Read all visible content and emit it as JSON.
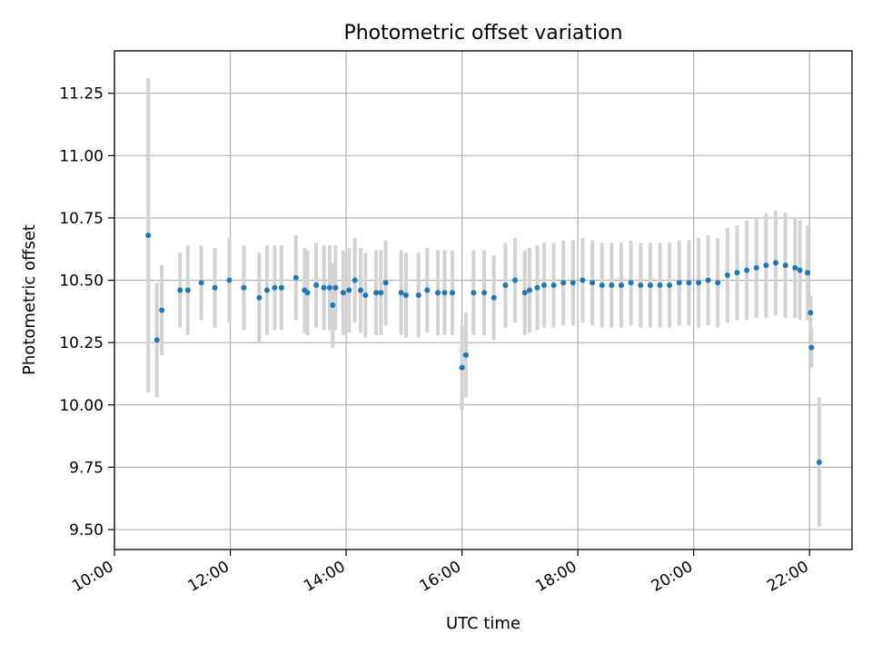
{
  "chart_data": {
    "type": "scatter",
    "title": "Photometric offset variation",
    "xlabel": "UTC time",
    "ylabel": "Photometric offset",
    "xlim": [
      "10:00",
      "22:44"
    ],
    "ylim": [
      9.42,
      11.42
    ],
    "x_ticks": [
      "10:00",
      "12:00",
      "14:00",
      "16:00",
      "18:00",
      "20:00",
      "22:00"
    ],
    "y_ticks": [
      "9.50",
      "9.75",
      "10.00",
      "10.25",
      "10.50",
      "10.75",
      "11.00",
      "11.25"
    ],
    "grid": true,
    "colors": {
      "points": "#1f77b4",
      "errorbars": "#d3d3d3",
      "grid": "#b0b0b0"
    },
    "series": [
      {
        "x": [
          "10:35",
          "10:44",
          "10:49",
          "11:08",
          "11:16",
          "11:30",
          "11:44",
          "11:59",
          "12:14",
          "12:30",
          "12:38",
          "12:46",
          "12:53",
          "13:08",
          "13:17",
          "13:20",
          "13:29",
          "13:37",
          "13:43",
          "13:46",
          "13:49",
          "13:57",
          "14:03",
          "14:09",
          "14:15",
          "14:20",
          "14:31",
          "14:36",
          "14:41",
          "14:57",
          "15:02",
          "15:15",
          "15:24",
          "15:35",
          "15:42",
          "15:50",
          "16:00",
          "16:04",
          "16:12",
          "16:23",
          "16:33",
          "16:45",
          "16:55",
          "17:05",
          "17:10",
          "17:18",
          "17:25",
          "17:35",
          "17:45",
          "17:55",
          "18:05",
          "18:15",
          "18:25",
          "18:35",
          "18:45",
          "18:55",
          "19:05",
          "19:15",
          "19:25",
          "19:35",
          "19:45",
          "19:55",
          "20:05",
          "20:15",
          "20:25",
          "20:35",
          "20:45",
          "20:55",
          "21:05",
          "21:15",
          "21:25",
          "21:35",
          "21:45",
          "21:50",
          "21:58",
          "22:01",
          "22:02",
          "22:10"
        ],
        "y": [
          10.68,
          10.26,
          10.38,
          10.46,
          10.46,
          10.49,
          10.47,
          10.5,
          10.47,
          10.43,
          10.46,
          10.47,
          10.47,
          10.51,
          10.46,
          10.45,
          10.48,
          10.47,
          10.47,
          10.4,
          10.47,
          10.45,
          10.46,
          10.5,
          10.46,
          10.44,
          10.45,
          10.45,
          10.49,
          10.45,
          10.44,
          10.44,
          10.46,
          10.45,
          10.45,
          10.45,
          10.15,
          10.2,
          10.45,
          10.45,
          10.43,
          10.48,
          10.5,
          10.45,
          10.46,
          10.47,
          10.48,
          10.48,
          10.49,
          10.49,
          10.5,
          10.49,
          10.48,
          10.48,
          10.48,
          10.49,
          10.48,
          10.48,
          10.48,
          10.48,
          10.49,
          10.49,
          10.49,
          10.5,
          10.49,
          10.52,
          10.53,
          10.54,
          10.55,
          10.56,
          10.57,
          10.56,
          10.55,
          10.54,
          10.53,
          10.37,
          10.23,
          9.77
        ],
        "yerr": [
          0.63,
          0.23,
          0.18,
          0.15,
          0.18,
          0.15,
          0.16,
          0.17,
          0.17,
          0.18,
          0.18,
          0.17,
          0.17,
          0.17,
          0.17,
          0.17,
          0.17,
          0.17,
          0.17,
          0.17,
          0.17,
          0.17,
          0.17,
          0.17,
          0.17,
          0.17,
          0.17,
          0.17,
          0.17,
          0.17,
          0.17,
          0.17,
          0.17,
          0.17,
          0.17,
          0.17,
          0.17,
          0.17,
          0.17,
          0.17,
          0.17,
          0.17,
          0.17,
          0.17,
          0.17,
          0.17,
          0.17,
          0.17,
          0.17,
          0.17,
          0.17,
          0.17,
          0.17,
          0.17,
          0.17,
          0.17,
          0.17,
          0.17,
          0.17,
          0.17,
          0.17,
          0.17,
          0.18,
          0.18,
          0.18,
          0.19,
          0.19,
          0.2,
          0.2,
          0.21,
          0.21,
          0.21,
          0.2,
          0.2,
          0.19,
          0.07,
          0.08,
          0.26
        ]
      }
    ]
  }
}
